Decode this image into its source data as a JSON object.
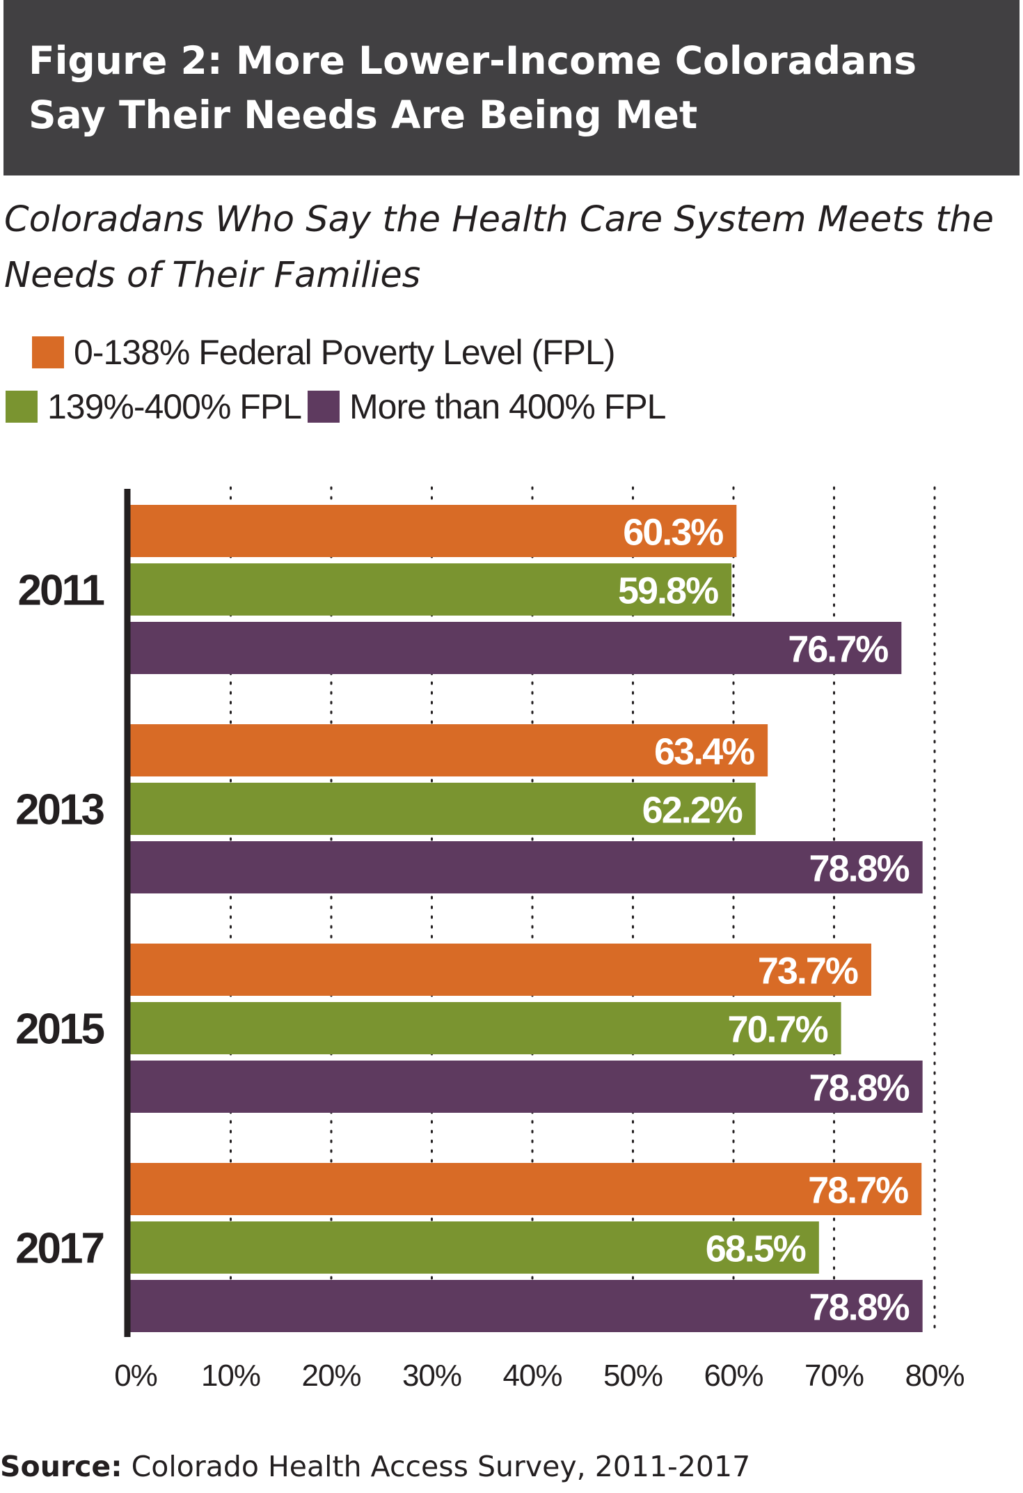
{
  "header": {
    "title": "Figure 2: More Lower-Income Coloradans Say Their Needs Are Being Met"
  },
  "subtitle": "Coloradans Who Say the Health Care System Meets the Needs of Their Families",
  "legend": [
    {
      "label": "0-138% Federal Poverty Level (FPL)",
      "color": "#d86b26"
    },
    {
      "label": "139%-400% FPL",
      "color": "#7a9430"
    },
    {
      "label": "More than 400% FPL",
      "color": "#5e3a5f"
    }
  ],
  "chart_data": {
    "type": "bar",
    "orientation": "horizontal",
    "categories": [
      "2011",
      "2013",
      "2015",
      "2017"
    ],
    "series": [
      {
        "name": "0-138% Federal Poverty Level (FPL)",
        "color": "#d86b26",
        "values": [
          60.3,
          63.4,
          73.7,
          78.7
        ],
        "labels": [
          "60.3%",
          "63.4%",
          "73.7%",
          "78.7%"
        ]
      },
      {
        "name": "139%-400% FPL",
        "color": "#7a9430",
        "values": [
          59.8,
          62.2,
          70.7,
          68.5
        ],
        "labels": [
          "59.8%",
          "62.2%",
          "70.7%",
          "68.5%"
        ]
      },
      {
        "name": "More than 400% FPL",
        "color": "#5e3a5f",
        "values": [
          76.7,
          78.8,
          78.8,
          78.8
        ],
        "labels": [
          "76.7%",
          "78.8%",
          "78.8%",
          "78.8%"
        ]
      }
    ],
    "xlim": [
      0,
      80
    ],
    "xticks": [
      0,
      10,
      20,
      30,
      40,
      50,
      60,
      70,
      80
    ],
    "xtick_labels": [
      "0%",
      "10%",
      "20%",
      "30%",
      "40%",
      "50%",
      "60%",
      "70%",
      "80%"
    ],
    "grid": "dotted vertical"
  },
  "source": {
    "label": "Source:",
    "text": " Colorado Health Access Survey, 2011-2017"
  }
}
